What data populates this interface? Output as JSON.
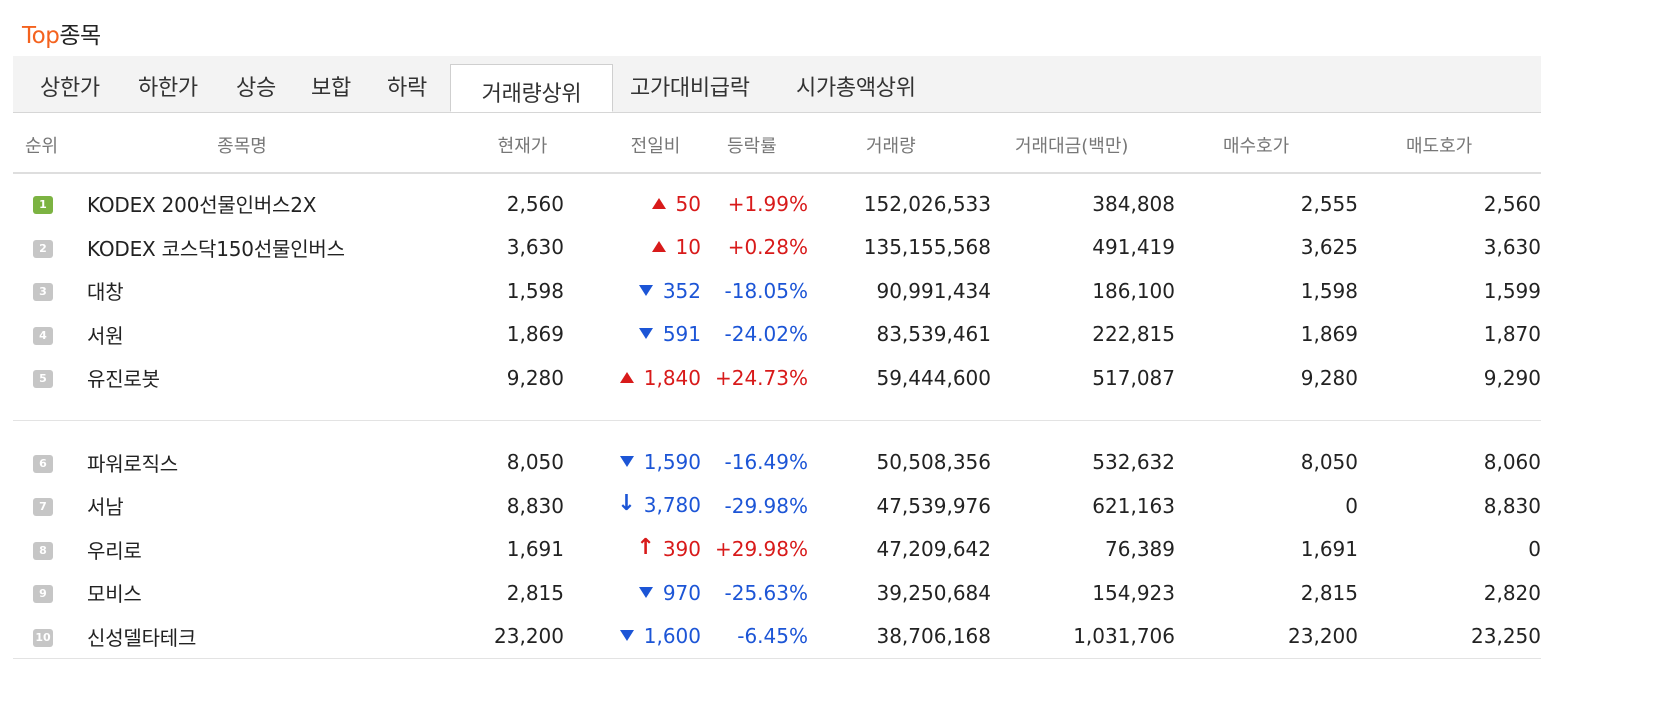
{
  "title": {
    "accent": "Top",
    "rest": "종목"
  },
  "tabs": [
    {
      "label": "상한가",
      "active": false
    },
    {
      "label": "하한가",
      "active": false
    },
    {
      "label": "상승",
      "active": false
    },
    {
      "label": "보합",
      "active": false
    },
    {
      "label": "하락",
      "active": false
    },
    {
      "label": "거래량상위",
      "active": true
    },
    {
      "label": "고가대비급락",
      "active": false
    },
    {
      "label": "시가총액상위",
      "active": false
    }
  ],
  "columns": [
    "순위",
    "종목명",
    "현재가",
    "전일비",
    "등락률",
    "거래량",
    "거래대금(백만)",
    "매수호가",
    "매도호가"
  ],
  "rows": [
    {
      "rank": "1",
      "name": "KODEX 200선물인버스2X",
      "price": "2,560",
      "dir": "up",
      "icon": "triangle-up-icon",
      "change": "50",
      "rate": "+1.99%",
      "volume": "152,026,533",
      "amount": "384,808",
      "bid": "2,555",
      "ask": "2,560"
    },
    {
      "rank": "2",
      "name": "KODEX 코스닥150선물인버스",
      "price": "3,630",
      "dir": "up",
      "icon": "triangle-up-icon",
      "change": "10",
      "rate": "+0.28%",
      "volume": "135,155,568",
      "amount": "491,419",
      "bid": "3,625",
      "ask": "3,630"
    },
    {
      "rank": "3",
      "name": "대창",
      "price": "1,598",
      "dir": "dn",
      "icon": "triangle-down-icon",
      "change": "352",
      "rate": "-18.05%",
      "volume": "90,991,434",
      "amount": "186,100",
      "bid": "1,598",
      "ask": "1,599"
    },
    {
      "rank": "4",
      "name": "서원",
      "price": "1,869",
      "dir": "dn",
      "icon": "triangle-down-icon",
      "change": "591",
      "rate": "-24.02%",
      "volume": "83,539,461",
      "amount": "222,815",
      "bid": "1,869",
      "ask": "1,870"
    },
    {
      "rank": "5",
      "name": "유진로봇",
      "price": "9,280",
      "dir": "up",
      "icon": "triangle-up-icon",
      "change": "1,840",
      "rate": "+24.73%",
      "volume": "59,444,600",
      "amount": "517,087",
      "bid": "9,280",
      "ask": "9,290"
    },
    {
      "rank": "6",
      "name": "파워로직스",
      "price": "8,050",
      "dir": "dn",
      "icon": "triangle-down-icon",
      "change": "1,590",
      "rate": "-16.49%",
      "volume": "50,508,356",
      "amount": "532,632",
      "bid": "8,050",
      "ask": "8,060"
    },
    {
      "rank": "7",
      "name": "서남",
      "price": "8,830",
      "dir": "dn",
      "icon": "lower-limit-arrow-icon",
      "change": "3,780",
      "rate": "-29.98%",
      "volume": "47,539,976",
      "amount": "621,163",
      "bid": "0",
      "ask": "8,830"
    },
    {
      "rank": "8",
      "name": "우리로",
      "price": "1,691",
      "dir": "up",
      "icon": "upper-limit-arrow-icon",
      "change": "390",
      "rate": "+29.98%",
      "volume": "47,209,642",
      "amount": "76,389",
      "bid": "1,691",
      "ask": "0"
    },
    {
      "rank": "9",
      "name": "모비스",
      "price": "2,815",
      "dir": "dn",
      "icon": "triangle-down-icon",
      "change": "970",
      "rate": "-25.63%",
      "volume": "39,250,684",
      "amount": "154,923",
      "bid": "2,815",
      "ask": "2,820"
    },
    {
      "rank": "10",
      "name": "신성델타테크",
      "price": "23,200",
      "dir": "dn",
      "icon": "triangle-down-icon",
      "change": "1,600",
      "rate": "-6.45%",
      "volume": "38,706,168",
      "amount": "1,031,706",
      "bid": "23,200",
      "ask": "23,250"
    }
  ],
  "colors": {
    "accent": "#f4621e",
    "up": "#d81a1a",
    "down": "#1c55d6",
    "rank_top": "#7cb342",
    "rank": "#c6c6c6"
  }
}
